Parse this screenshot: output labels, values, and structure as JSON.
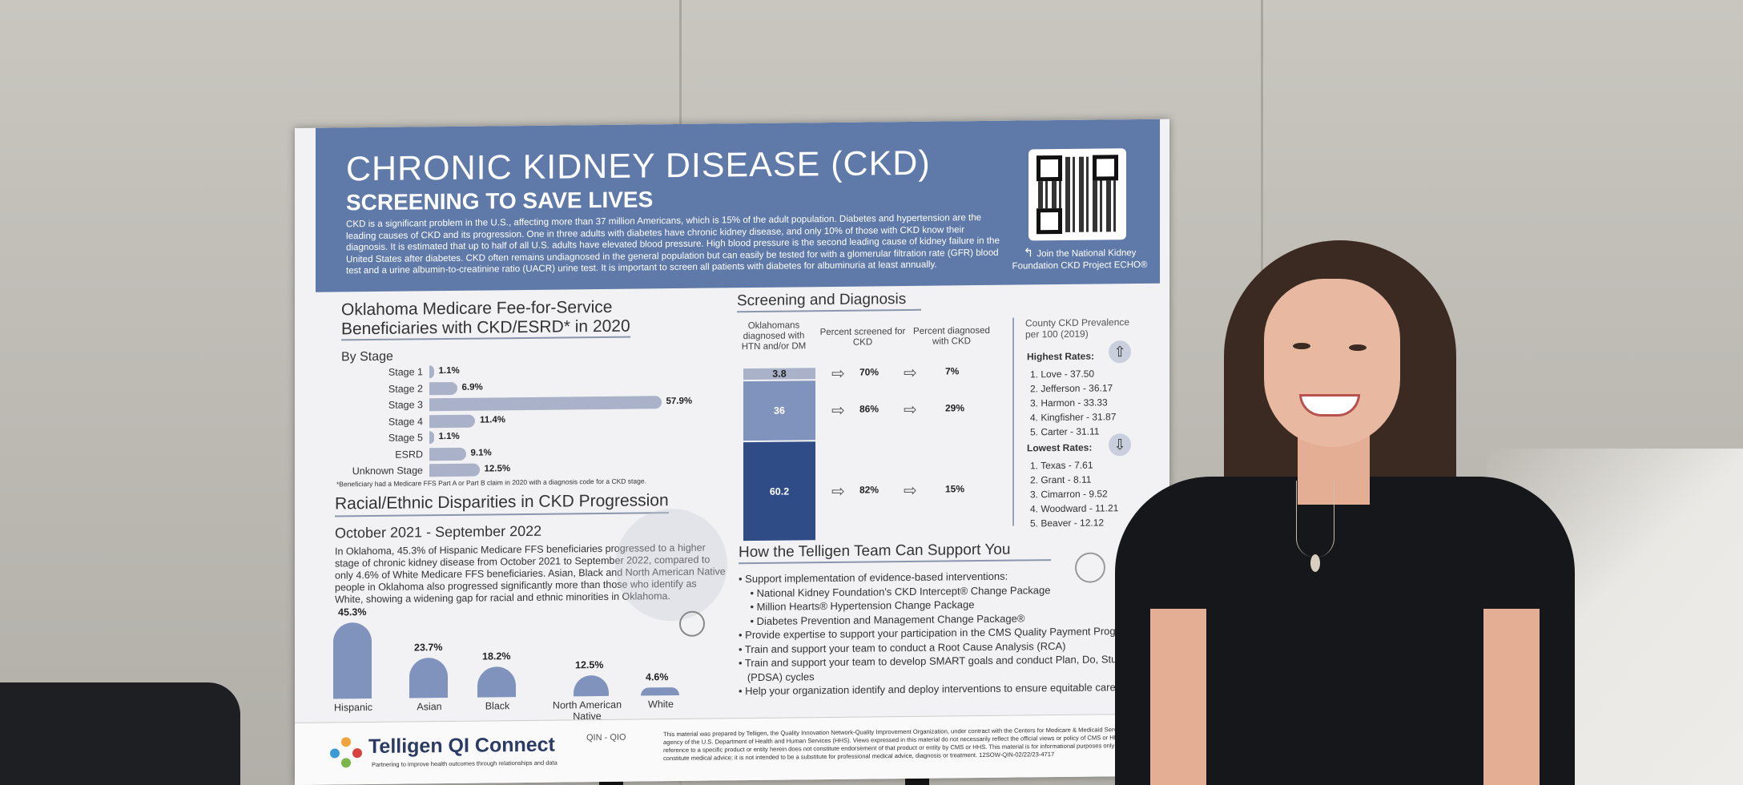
{
  "poster": {
    "title": "CHRONIC KIDNEY DISEASE (CKD)",
    "subtitle": "SCREENING TO SAVE LIVES",
    "intro": "CKD is a significant problem in the U.S., affecting more than 37 million Americans, which is 15% of the adult population. Diabetes and hypertension are the leading causes of CKD and its progression. One in three adults with diabetes have chronic kidney disease, and only 10% of those with CKD know their diagnosis. It is estimated that up to half of all U.S. adults have elevated blood pressure. High blood pressure is the second leading cause of kidney failure in the United States after diabetes. CKD often remains undiagnosed in the general population but can easily be tested for with a glomerular filtration rate (GFR) blood test and a urine albumin-to-creatinine ratio (UACR) urine test. It is important to screen all patients with diabetes for albuminuria at least annually.",
    "qr_caption": "Join the National Kidney Foundation CKD Project ECHO®",
    "medicare": {
      "title_line1": "Oklahoma Medicare Fee-for-Service",
      "title_line2": "Beneficiaries with CKD/ESRD* in 2020",
      "by_stage": "By Stage",
      "footnote": "*Beneficiary had a Medicare FFS Part A or Part B claim in 2020 with a diagnosis code for a CKD stage.",
      "stages": [
        {
          "label": "Stage 1",
          "value": 1.1,
          "text": "1.1%"
        },
        {
          "label": "Stage 2",
          "value": 6.9,
          "text": "6.9%"
        },
        {
          "label": "Stage 3",
          "value": 57.9,
          "text": "57.9%"
        },
        {
          "label": "Stage 4",
          "value": 11.4,
          "text": "11.4%"
        },
        {
          "label": "Stage 5",
          "value": 1.1,
          "text": "1.1%"
        },
        {
          "label": "ESRD",
          "value": 9.1,
          "text": "9.1%"
        },
        {
          "label": "Unknown Stage",
          "value": 12.5,
          "text": "12.5%"
        }
      ]
    },
    "racial": {
      "title": "Racial/Ethnic Disparities in CKD Progression",
      "period": "October 2021 - September 2022",
      "text": "In Oklahoma, 45.3% of Hispanic Medicare FFS beneficiaries progressed to a higher stage of chronic kidney disease from October 2021 to September 2022, compared to only 4.6% of White Medicare FFS beneficiaries. Asian, Black and North American Native people in Oklahoma also progressed significantly more than those who identify as White, showing a widening gap for racial and ethnic minorities in Oklahoma.",
      "groups": [
        {
          "label": "Hispanic",
          "value": 45.3,
          "text": "45.3%"
        },
        {
          "label": "Asian",
          "value": 23.7,
          "text": "23.7%"
        },
        {
          "label": "Black",
          "value": 18.2,
          "text": "18.2%"
        },
        {
          "label": "North American Native",
          "value": 12.5,
          "text": "12.5%"
        },
        {
          "label": "White",
          "value": 4.6,
          "text": "4.6%"
        }
      ]
    },
    "screening": {
      "title": "Screening and Diagnosis",
      "col1": "Oklahomans diagnosed with HTN and/or DM",
      "col2": "Percent screened for CKD",
      "col3": "Percent diagnosed with CKD",
      "rows": [
        {
          "segment": "3.8",
          "share": 3.8,
          "screened": "70%",
          "diagnosed": "7%"
        },
        {
          "segment": "36",
          "share": 36,
          "screened": "86%",
          "diagnosed": "29%"
        },
        {
          "segment": "60.2",
          "share": 60.2,
          "screened": "82%",
          "diagnosed": "15%"
        }
      ]
    },
    "county": {
      "title": "County CKD Prevalence per 100 (2019)",
      "highest_label": "Highest Rates:",
      "highest": [
        "1.    Love - 37.50",
        "2.    Jefferson - 36.17",
        "3.    Harmon - 33.33",
        "4.    Kingfisher - 31.87",
        "5.    Carter - 31.11"
      ],
      "lowest_label": "Lowest Rates:",
      "lowest": [
        "1.    Texas - 7.61",
        "2.    Grant - 8.11",
        "3.    Cimarron - 9.52",
        "4.    Woodward - 11.21",
        "5.    Beaver - 12.12"
      ]
    },
    "support": {
      "title": "How the Telligen Team Can Support You",
      "bullets": [
        "• Support implementation of evidence-based interventions:",
        "    • National Kidney Foundation's CKD Intercept® Change Package",
        "    • Million Hearts® Hypertension Change Package",
        "    • Diabetes Prevention and Management Change Package®",
        "• Provide expertise to support your participation in the CMS Quality Payment Program (Q",
        "• Train and support your team to conduct a Root Cause Analysis (RCA)",
        "• Train and support your team to develop SMART goals and conduct Plan, Do, Study, Act",
        "   (PDSA) cycles",
        "• Help your organization identify and deploy interventions to ensure equitable care"
      ]
    },
    "footer": {
      "logo": "Telligen QI Connect",
      "tagline": "Partnering to improve health outcomes through relationships and data",
      "qin": "QIN - QIO",
      "disclaimer": "This material was prepared by Telligen, the Quality Innovation Network-Quality Improvement Organization, under contract with the Centers for Medicare & Medicaid Services (CMS), an agency of the U.S. Department of Health and Human Services (HHS). Views expressed in this material do not necessarily reflect the official views or policy of CMS or HHS, and any reference to a specific product or entity herein does not constitute endorsement of that product or entity by CMS or HHS. This material is for informational purposes only and does not constitute medical advice; it is not intended to be a substitute for professional medical advice, diagnosis or treatment. 12SOW-QIN-02/22/23-4717"
    }
  },
  "colors": {
    "banner": "#5f7aa8",
    "bar_light": "#a9b2c9",
    "arch": "#7f93bd",
    "stack_top": "#a9b2c9",
    "stack_mid": "#7f93bd",
    "stack_bottom": "#2f4c86"
  }
}
